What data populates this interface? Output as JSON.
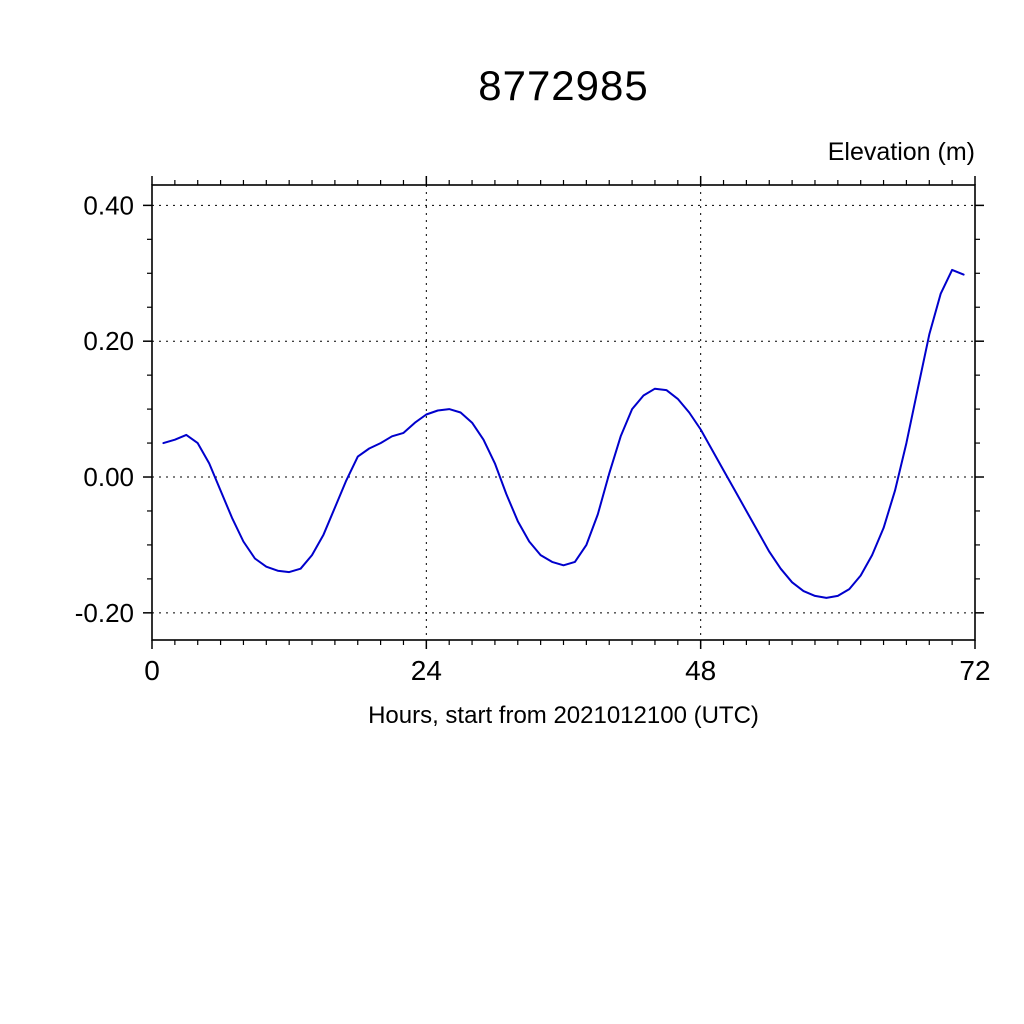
{
  "header": {
    "title": "8772985"
  },
  "chart_data": {
    "type": "line",
    "title": "8772985",
    "xlabel": "Hours, start from 2021012100 (UTC)",
    "ylabel": "Elevation (m)",
    "xlim": [
      0,
      72
    ],
    "ylim": [
      -0.24,
      0.43
    ],
    "x_major_ticks": [
      0,
      24,
      48,
      72
    ],
    "x_tick_labels": [
      "0",
      "24",
      "48",
      "72"
    ],
    "y_major_ticks": [
      -0.2,
      0.0,
      0.2,
      0.4
    ],
    "y_tick_labels": [
      "-0.20",
      "0.00",
      "0.20",
      "0.40"
    ],
    "x_minor_step": 2,
    "y_minor_step": 0.05,
    "grid": true,
    "grid_style": "dashed",
    "line_color": "#0000cc",
    "frame_color": "#000000",
    "series": [
      {
        "name": "elevation",
        "x": [
          1,
          2,
          3,
          4,
          5,
          6,
          7,
          8,
          9,
          10,
          11,
          12,
          13,
          14,
          15,
          16,
          17,
          18,
          19,
          20,
          21,
          22,
          23,
          24,
          25,
          26,
          27,
          28,
          29,
          30,
          31,
          32,
          33,
          34,
          35,
          36,
          37,
          38,
          39,
          40,
          41,
          42,
          43,
          44,
          45,
          46,
          47,
          48,
          49,
          50,
          51,
          52,
          53,
          54,
          55,
          56,
          57,
          58,
          59,
          60,
          61,
          62,
          63,
          64,
          65,
          66,
          67,
          68,
          69,
          70,
          71
        ],
        "y": [
          0.05,
          0.055,
          0.062,
          0.05,
          0.02,
          -0.02,
          -0.06,
          -0.095,
          -0.12,
          -0.132,
          -0.138,
          -0.14,
          -0.135,
          -0.115,
          -0.085,
          -0.045,
          -0.005,
          0.03,
          0.042,
          0.05,
          0.06,
          0.065,
          0.08,
          0.092,
          0.098,
          0.1,
          0.095,
          0.08,
          0.055,
          0.02,
          -0.025,
          -0.065,
          -0.095,
          -0.115,
          -0.125,
          -0.13,
          -0.125,
          -0.1,
          -0.055,
          0.005,
          0.06,
          0.1,
          0.12,
          0.13,
          0.128,
          0.115,
          0.095,
          0.07,
          0.04,
          0.01,
          -0.02,
          -0.05,
          -0.08,
          -0.11,
          -0.135,
          -0.155,
          -0.168,
          -0.175,
          -0.178,
          -0.175,
          -0.165,
          -0.145,
          -0.115,
          -0.075,
          -0.02,
          0.05,
          0.13,
          0.21,
          0.27,
          0.305,
          0.298
        ]
      }
    ]
  }
}
